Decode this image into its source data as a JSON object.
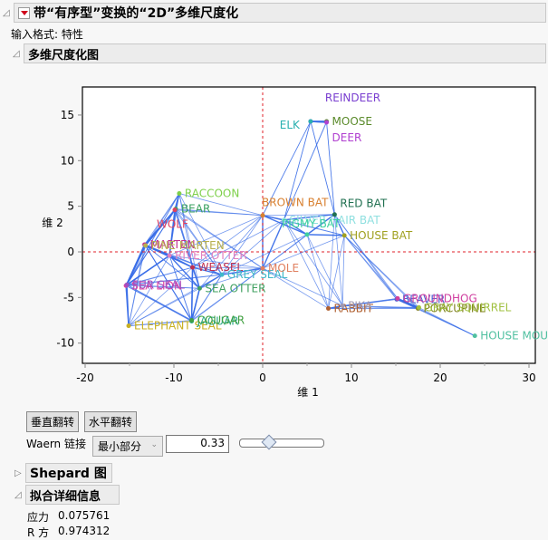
{
  "report": {
    "title": "带“有序型”变换的“2D”多维尺度化",
    "input_format": "输入格式: 特性",
    "plot_section_title": "多维尺度化图"
  },
  "controls": {
    "flip_vertical": "垂直翻转",
    "flip_horizontal": "水平翻转",
    "waern_label": "Waern 链接",
    "waern_select": "最小部分",
    "waern_value": "0.33",
    "slider_position": 0.33
  },
  "shepard": {
    "title": "Shepard 图"
  },
  "fit": {
    "title": "拟合详细信息",
    "stress_label": "应力",
    "stress_value": "0.075761",
    "rsq_label": "R 方",
    "rsq_value": "0.974312"
  },
  "chart_data": {
    "type": "scatter",
    "title": "多维尺度化图",
    "xlabel": "维 1",
    "ylabel": "维 2",
    "xlim": [
      -20,
      30
    ],
    "ylim": [
      -12,
      18
    ],
    "xticks": [
      -20,
      -10,
      0,
      10,
      20,
      30
    ],
    "yticks": [
      -10,
      -5,
      0,
      5,
      10,
      15
    ],
    "reference_lines": {
      "x": 0,
      "y": 0,
      "color": "#e0202a"
    },
    "link_color": "#3a6ee8",
    "points": [
      {
        "label": "REINDEER",
        "x": 5.4,
        "y": 14.3,
        "color": "#7a3fd0"
      },
      {
        "label": "ELK",
        "x": 5.4,
        "y": 14.3,
        "color": "#2ab0b0"
      },
      {
        "label": "MOOSE",
        "x": 7.2,
        "y": 14.3,
        "color": "#5a8a2a"
      },
      {
        "label": "DEER",
        "x": 7.2,
        "y": 14.2,
        "color": "#b040d0"
      },
      {
        "label": "RACCOON",
        "x": -9.4,
        "y": 6.4,
        "color": "#7ed04a"
      },
      {
        "label": "BEAR",
        "x": -9.8,
        "y": 4.7,
        "color": "#3aa060"
      },
      {
        "label": "WOLF",
        "x": -9.9,
        "y": 4.6,
        "color": "#e04060"
      },
      {
        "label": "MARTEN",
        "x": -13.3,
        "y": 0.8,
        "color": "#c03090"
      },
      {
        "label": "PINE MARTEN",
        "x": -13.2,
        "y": 0.7,
        "color": "#b8b050"
      },
      {
        "label": "RIVER OTTER",
        "x": -10.5,
        "y": -0.4,
        "color": "#e080c0"
      },
      {
        "label": "WEASEL",
        "x": -7.9,
        "y": -1.7,
        "color": "#c03050"
      },
      {
        "label": "GREY SEAL",
        "x": -4.6,
        "y": -2.5,
        "color": "#40b8c8"
      },
      {
        "label": "SEA LION",
        "x": -15.4,
        "y": -3.7,
        "color": "#e040a0"
      },
      {
        "label": "FUR SEAL",
        "x": -15.3,
        "y": -3.6,
        "color": "#a050c0"
      },
      {
        "label": "SEA OTTER",
        "x": -7.1,
        "y": -4.0,
        "color": "#40a060"
      },
      {
        "label": "ELEPHANT SEAL",
        "x": -15.1,
        "y": -8.1,
        "color": "#c8b020"
      },
      {
        "label": "JAGUAR",
        "x": -8.0,
        "y": -7.6,
        "color": "#2aa888"
      },
      {
        "label": "COUGAR",
        "x": -8.0,
        "y": -7.5,
        "color": "#40a040"
      },
      {
        "label": "MOLE",
        "x": 0.0,
        "y": -1.8,
        "color": "#e08060"
      },
      {
        "label": "BROWN BAT",
        "x": 0.0,
        "y": 4.0,
        "color": "#d88030"
      },
      {
        "label": "SILVER HAIR BAT",
        "x": 2.4,
        "y": 3.5,
        "color": "#90e0e0"
      },
      {
        "label": "PIGMY BAT",
        "x": 5.0,
        "y": 1.9,
        "color": "#40d0a0"
      },
      {
        "label": "RED BAT",
        "x": 8.1,
        "y": 4.1,
        "color": "#207050"
      },
      {
        "label": "HOUSE BAT",
        "x": 9.2,
        "y": 1.8,
        "color": "#a0a020"
      },
      {
        "label": "RABBIT",
        "x": 7.4,
        "y": -6.2,
        "color": "#b06030"
      },
      {
        "label": "PIKA",
        "x": 9.0,
        "y": -5.9,
        "color": "#a098b0"
      },
      {
        "label": "BEAVER",
        "x": 15.1,
        "y": -5.2,
        "color": "#5060d0"
      },
      {
        "label": "GROUNDHOG",
        "x": 15.2,
        "y": -5.1,
        "color": "#d040a0"
      },
      {
        "label": "PORCUPINE",
        "x": 17.5,
        "y": -6.2,
        "color": "#808020"
      },
      {
        "label": "GRAY SQUIRREL",
        "x": 17.6,
        "y": -6.1,
        "color": "#a0c040"
      },
      {
        "label": "HOUSE MOUSE",
        "x": 23.9,
        "y": -9.2,
        "color": "#50c0a0"
      }
    ]
  }
}
